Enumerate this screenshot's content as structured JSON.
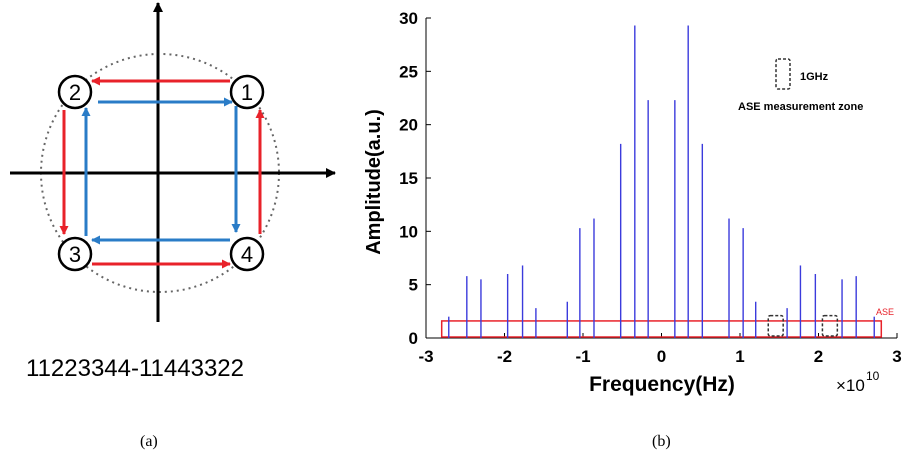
{
  "panel_a": {
    "points": [
      "1",
      "2",
      "3",
      "4"
    ],
    "sequence": "11223344-11443322",
    "caption": "(a)",
    "colors": {
      "outer_path": "#e8222a",
      "inner_path": "#2a7cc7"
    }
  },
  "panel_b": {
    "caption": "(b)",
    "exponent_base": "×10",
    "exponent": "10"
  },
  "chart_data": {
    "type": "bar",
    "xlabel": "Frequency(Hz)",
    "ylabel": "Amplitude(a.u.)",
    "x_scale_label": "×10^10",
    "xlim": [
      -3,
      3
    ],
    "ylim": [
      0,
      30
    ],
    "xticks": [
      -3,
      -2,
      -1,
      0,
      1,
      2,
      3
    ],
    "xtick_labels": [
      "-3",
      "-2",
      "-1",
      "0",
      "1",
      "2",
      "3"
    ],
    "yticks": [
      0,
      5,
      10,
      15,
      20,
      25,
      30
    ],
    "ytick_labels": [
      "0",
      "5",
      "10",
      "15",
      "20",
      "25",
      "30"
    ],
    "bar_color": "#3b3bdc",
    "x": [
      -2.71,
      -2.48,
      -2.3,
      -1.96,
      -1.77,
      -1.6,
      -1.2,
      -1.04,
      -0.86,
      -0.52,
      -0.34,
      -0.17,
      0.17,
      0.34,
      0.52,
      0.86,
      1.04,
      1.2,
      1.6,
      1.77,
      1.96,
      2.3,
      2.48,
      2.71
    ],
    "values": [
      2.0,
      5.8,
      5.5,
      6.0,
      6.8,
      2.8,
      3.4,
      10.3,
      11.2,
      18.2,
      29.3,
      22.3,
      22.3,
      29.3,
      18.2,
      11.2,
      10.3,
      3.4,
      2.8,
      6.8,
      6.0,
      5.5,
      5.8,
      2.0
    ],
    "ase_band": {
      "x": [
        -2.8,
        2.8
      ],
      "y": [
        0,
        1.6
      ],
      "label": "ASE",
      "color": "#e8222a"
    },
    "measurement_zones": [
      {
        "x": [
          1.36,
          1.55
        ],
        "y": [
          0,
          2.1
        ]
      },
      {
        "x": [
          2.05,
          2.24
        ],
        "y": [
          0,
          2.1
        ]
      }
    ],
    "legend": {
      "zone_label": "1GHz",
      "description": "ASE measurement zone",
      "position": "top-right"
    }
  }
}
